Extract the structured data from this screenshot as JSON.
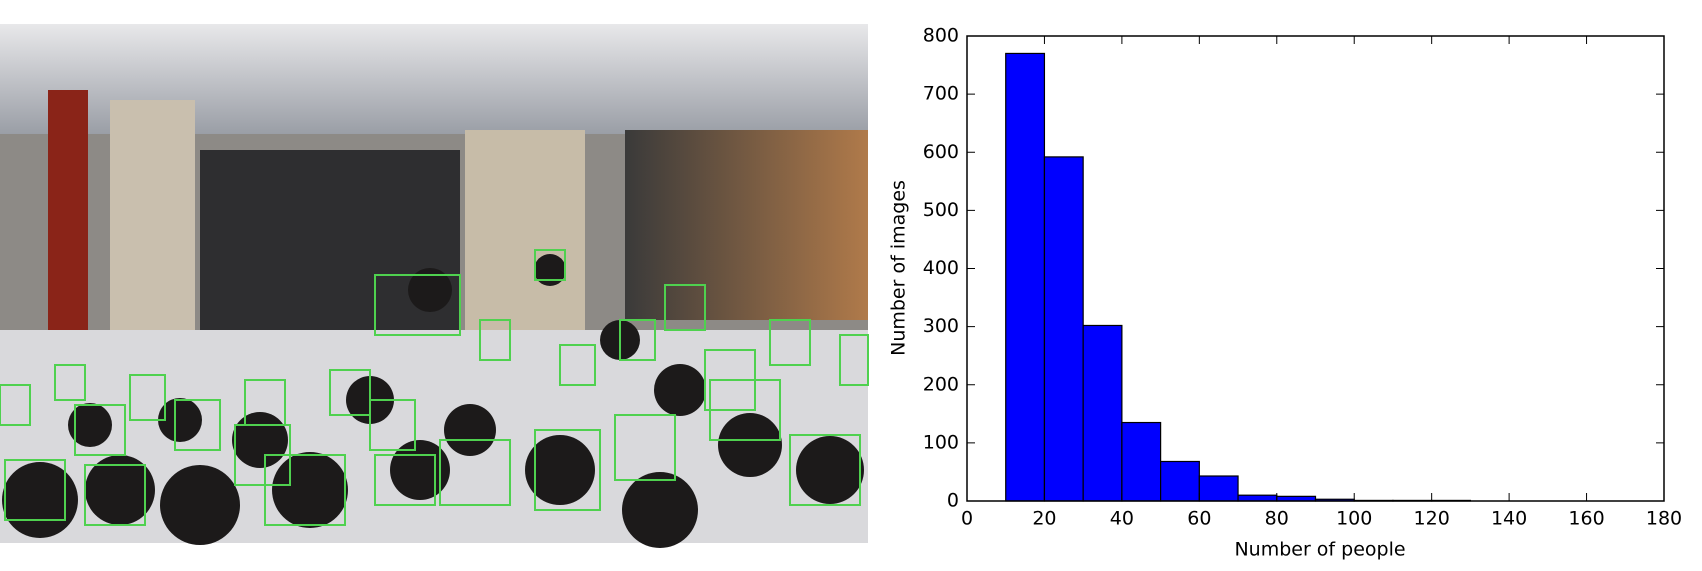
{
  "chart_data": {
    "type": "histogram",
    "xlabel": "Number of people",
    "ylabel": "Number of images",
    "bins": [
      10,
      20,
      30,
      40,
      50,
      60,
      70,
      80,
      90,
      100,
      110,
      120,
      130
    ],
    "counts": [
      770,
      592,
      302,
      135,
      68,
      43,
      10,
      8,
      3,
      1,
      1,
      1
    ],
    "color": "#0000ff",
    "xlim": [
      0,
      180
    ],
    "ylim": [
      0,
      800
    ],
    "xticks": [
      0,
      20,
      40,
      60,
      80,
      100,
      120,
      140,
      160,
      180
    ],
    "yticks": [
      0,
      100,
      200,
      300,
      400,
      500,
      600,
      700,
      800
    ]
  }
}
